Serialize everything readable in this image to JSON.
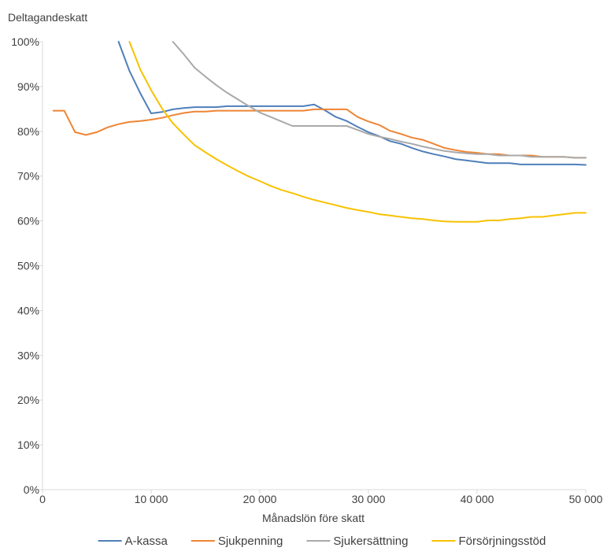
{
  "chart_data": {
    "type": "line",
    "ylabel": "Deltagandeskatt",
    "xlabel": "Månadslön före skatt",
    "xlim": [
      0,
      50000
    ],
    "ylim": [
      0,
      100
    ],
    "x_ticks": [
      0,
      10000,
      20000,
      30000,
      40000,
      50000
    ],
    "x_tick_labels": [
      "0",
      "10 000",
      "20 000",
      "30 000",
      "40 000",
      "50 000"
    ],
    "y_ticks": [
      0,
      10,
      20,
      30,
      40,
      50,
      60,
      70,
      80,
      90,
      100
    ],
    "y_tick_labels": [
      "0%",
      "10%",
      "20%",
      "30%",
      "40%",
      "50%",
      "60%",
      "70%",
      "80%",
      "90%",
      "100%"
    ],
    "grid": false,
    "legend_position": "bottom",
    "series": [
      {
        "name": "A-kassa",
        "color": "#4f7fba",
        "points": [
          [
            7000,
            100
          ],
          [
            8000,
            93.5
          ],
          [
            9000,
            88.5
          ],
          [
            10000,
            84
          ],
          [
            11000,
            84.3
          ],
          [
            12000,
            84.9
          ],
          [
            13000,
            85.2
          ],
          [
            14000,
            85.4
          ],
          [
            15000,
            85.4
          ],
          [
            16000,
            85.4
          ],
          [
            17000,
            85.6
          ],
          [
            18000,
            85.6
          ],
          [
            19000,
            85.6
          ],
          [
            20000,
            85.6
          ],
          [
            21000,
            85.6
          ],
          [
            22000,
            85.6
          ],
          [
            23000,
            85.6
          ],
          [
            24000,
            85.6
          ],
          [
            25000,
            86
          ],
          [
            26000,
            84.7
          ],
          [
            27000,
            83.2
          ],
          [
            28000,
            82.3
          ],
          [
            29000,
            81
          ],
          [
            30000,
            79.8
          ],
          [
            31000,
            78.9
          ],
          [
            32000,
            77.8
          ],
          [
            33000,
            77.2
          ],
          [
            34000,
            76.3
          ],
          [
            35000,
            75.5
          ],
          [
            36000,
            74.9
          ],
          [
            37000,
            74.4
          ],
          [
            38000,
            73.8
          ],
          [
            39000,
            73.5
          ],
          [
            40000,
            73.2
          ],
          [
            41000,
            72.9
          ],
          [
            42000,
            72.9
          ],
          [
            43000,
            72.9
          ],
          [
            44000,
            72.6
          ],
          [
            45000,
            72.6
          ],
          [
            46000,
            72.6
          ],
          [
            47000,
            72.6
          ],
          [
            48000,
            72.6
          ],
          [
            49000,
            72.6
          ],
          [
            50000,
            72.5
          ]
        ]
      },
      {
        "name": "Sjukpenning",
        "color": "#ee8534",
        "points": [
          [
            1000,
            84.6
          ],
          [
            2000,
            84.6
          ],
          [
            3000,
            79.8
          ],
          [
            4000,
            79.2
          ],
          [
            5000,
            79.8
          ],
          [
            6000,
            80.9
          ],
          [
            7000,
            81.6
          ],
          [
            8000,
            82.1
          ],
          [
            9000,
            82.3
          ],
          [
            10000,
            82.6
          ],
          [
            11000,
            83
          ],
          [
            12000,
            83.6
          ],
          [
            13000,
            84.1
          ],
          [
            14000,
            84.4
          ],
          [
            15000,
            84.4
          ],
          [
            16000,
            84.6
          ],
          [
            17000,
            84.6
          ],
          [
            18000,
            84.6
          ],
          [
            19000,
            84.6
          ],
          [
            20000,
            84.6
          ],
          [
            21000,
            84.6
          ],
          [
            22000,
            84.6
          ],
          [
            23000,
            84.6
          ],
          [
            24000,
            84.6
          ],
          [
            25000,
            84.9
          ],
          [
            26000,
            84.9
          ],
          [
            27000,
            84.9
          ],
          [
            28000,
            84.9
          ],
          [
            29000,
            83.2
          ],
          [
            30000,
            82.2
          ],
          [
            31000,
            81.4
          ],
          [
            32000,
            80.1
          ],
          [
            33000,
            79.4
          ],
          [
            34000,
            78.6
          ],
          [
            35000,
            78.1
          ],
          [
            36000,
            77.2
          ],
          [
            37000,
            76.3
          ],
          [
            38000,
            75.8
          ],
          [
            39000,
            75.4
          ],
          [
            40000,
            75.2
          ],
          [
            41000,
            74.9
          ],
          [
            42000,
            74.9
          ],
          [
            43000,
            74.6
          ],
          [
            44000,
            74.6
          ],
          [
            45000,
            74.6
          ],
          [
            46000,
            74.3
          ],
          [
            47000,
            74.3
          ],
          [
            48000,
            74.3
          ],
          [
            49000,
            74.1
          ],
          [
            50000,
            74.1
          ]
        ]
      },
      {
        "name": "Sjukersättning",
        "color": "#a9a9a9",
        "points": [
          [
            12000,
            100
          ],
          [
            13000,
            97.2
          ],
          [
            14000,
            94.2
          ],
          [
            15000,
            92.2
          ],
          [
            16000,
            90.3
          ],
          [
            17000,
            88.6
          ],
          [
            18000,
            87.1
          ],
          [
            19000,
            85.6
          ],
          [
            20000,
            84.2
          ],
          [
            21000,
            83.2
          ],
          [
            22000,
            82.2
          ],
          [
            23000,
            81.2
          ],
          [
            24000,
            81.2
          ],
          [
            25000,
            81.2
          ],
          [
            26000,
            81.2
          ],
          [
            27000,
            81.2
          ],
          [
            28000,
            81.2
          ],
          [
            29000,
            80.3
          ],
          [
            30000,
            79.4
          ],
          [
            31000,
            78.8
          ],
          [
            32000,
            78.3
          ],
          [
            33000,
            77.7
          ],
          [
            34000,
            77.2
          ],
          [
            35000,
            76.6
          ],
          [
            36000,
            76.1
          ],
          [
            37000,
            75.6
          ],
          [
            38000,
            75.3
          ],
          [
            39000,
            75.1
          ],
          [
            40000,
            74.9
          ],
          [
            41000,
            74.9
          ],
          [
            42000,
            74.6
          ],
          [
            43000,
            74.6
          ],
          [
            44000,
            74.6
          ],
          [
            45000,
            74.3
          ],
          [
            46000,
            74.3
          ],
          [
            47000,
            74.3
          ],
          [
            48000,
            74.3
          ],
          [
            49000,
            74.1
          ],
          [
            50000,
            74.1
          ]
        ]
      },
      {
        "name": "Försörjningsstöd",
        "color": "#f7c200",
        "points": [
          [
            8000,
            100
          ],
          [
            9000,
            93.8
          ],
          [
            10000,
            89.2
          ],
          [
            11000,
            85.1
          ],
          [
            12000,
            81.8
          ],
          [
            13000,
            79.3
          ],
          [
            14000,
            76.9
          ],
          [
            15000,
            75.3
          ],
          [
            16000,
            73.8
          ],
          [
            17000,
            72.4
          ],
          [
            18000,
            71.1
          ],
          [
            19000,
            69.9
          ],
          [
            20000,
            68.9
          ],
          [
            21000,
            67.8
          ],
          [
            22000,
            66.9
          ],
          [
            23000,
            66.2
          ],
          [
            24000,
            65.4
          ],
          [
            25000,
            64.7
          ],
          [
            26000,
            64.1
          ],
          [
            27000,
            63.5
          ],
          [
            28000,
            62.9
          ],
          [
            29000,
            62.4
          ],
          [
            30000,
            62
          ],
          [
            31000,
            61.5
          ],
          [
            32000,
            61.2
          ],
          [
            33000,
            60.9
          ],
          [
            34000,
            60.6
          ],
          [
            35000,
            60.4
          ],
          [
            36000,
            60.1
          ],
          [
            37000,
            59.9
          ],
          [
            38000,
            59.8
          ],
          [
            39000,
            59.8
          ],
          [
            40000,
            59.8
          ],
          [
            41000,
            60.1
          ],
          [
            42000,
            60.1
          ],
          [
            43000,
            60.4
          ],
          [
            44000,
            60.6
          ],
          [
            45000,
            60.9
          ],
          [
            46000,
            60.9
          ],
          [
            47000,
            61.2
          ],
          [
            48000,
            61.5
          ],
          [
            49000,
            61.8
          ],
          [
            50000,
            61.8
          ]
        ]
      }
    ]
  }
}
